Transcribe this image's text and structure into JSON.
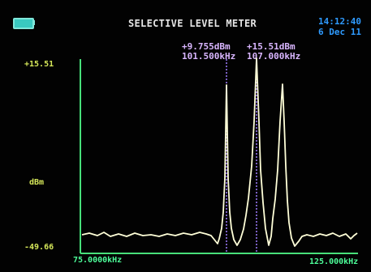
{
  "header": {
    "title": "SELECTIVE LEVEL METER",
    "time": "14:12:40",
    "date": "6 Dec 11"
  },
  "markers": [
    {
      "level": "+9.755dBm",
      "freq": "101.500kHz"
    },
    {
      "level": "+15.51dBm",
      "freq": "107.000kHz"
    }
  ],
  "axis": {
    "y_top": "+15.51",
    "y_unit": "dBm",
    "y_bottom": "-49.66",
    "x_left": "75.0000kHz",
    "x_right": "125.000kHz"
  },
  "colors": {
    "trace": "#ffffd8",
    "axis": "#47e07a",
    "marker_line": "#a07cff",
    "title": "#e6e6e6",
    "clock": "#2f9bff"
  },
  "icons": [
    "battery-icon"
  ]
}
